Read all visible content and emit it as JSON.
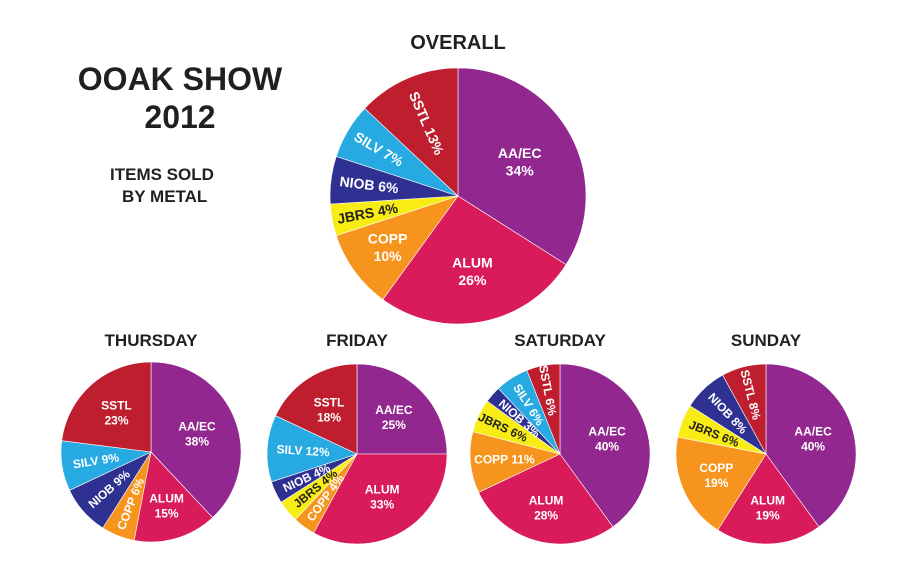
{
  "header": {
    "title_line1": "OOAK SHOW",
    "title_line2": "2012",
    "subtitle_line1": "ITEMS SOLD",
    "subtitle_line2": "BY METAL"
  },
  "colors": {
    "AA/EC": "#92278f",
    "ALUM": "#d91b5c",
    "COPP": "#f7941d",
    "JBRS": "#f7ec13",
    "NIOB": "#2e3192",
    "SILV": "#27aae1",
    "SSTL": "#be1e2d"
  },
  "chart_data": [
    {
      "type": "pie",
      "title": "OVERALL",
      "slices": [
        {
          "label": "AA/EC",
          "value": 34,
          "text": "AA/EC",
          "pct": "34%"
        },
        {
          "label": "ALUM",
          "value": 26,
          "text": "ALUM",
          "pct": "26%"
        },
        {
          "label": "COPP",
          "value": 10,
          "text": "COPP",
          "pct": "10%"
        },
        {
          "label": "JBRS",
          "value": 4,
          "text": "JBRS 4%",
          "pct": ""
        },
        {
          "label": "NIOB",
          "value": 6,
          "text": "NIOB 6%",
          "pct": ""
        },
        {
          "label": "SILV",
          "value": 7,
          "text": "SILV 7%",
          "pct": ""
        },
        {
          "label": "SSTL",
          "value": 13,
          "text": "SSTL 13%",
          "pct": ""
        }
      ]
    },
    {
      "type": "pie",
      "title": "THURSDAY",
      "slices": [
        {
          "label": "AA/EC",
          "value": 38,
          "text": "AA/EC",
          "pct": "38%"
        },
        {
          "label": "ALUM",
          "value": 15,
          "text": "ALUM",
          "pct": "15%"
        },
        {
          "label": "COPP",
          "value": 6,
          "text": "COPP 6%",
          "pct": ""
        },
        {
          "label": "NIOB",
          "value": 9,
          "text": "NIOB 9%",
          "pct": ""
        },
        {
          "label": "SILV",
          "value": 9,
          "text": "SILV 9%",
          "pct": ""
        },
        {
          "label": "SSTL",
          "value": 23,
          "text": "SSTL",
          "pct": "23%"
        }
      ]
    },
    {
      "type": "pie",
      "title": "FRIDAY",
      "slices": [
        {
          "label": "AA/EC",
          "value": 25,
          "text": "AA/EC",
          "pct": "25%"
        },
        {
          "label": "ALUM",
          "value": 33,
          "text": "ALUM",
          "pct": "33%"
        },
        {
          "label": "COPP",
          "value": 4,
          "text": "COPP 4%",
          "pct": ""
        },
        {
          "label": "JBRS",
          "value": 4,
          "text": "JBRS 4%",
          "pct": ""
        },
        {
          "label": "NIOB",
          "value": 4,
          "text": "NIOB 4%",
          "pct": ""
        },
        {
          "label": "SILV",
          "value": 12,
          "text": "SILV 12%",
          "pct": ""
        },
        {
          "label": "SSTL",
          "value": 18,
          "text": "SSTL",
          "pct": "18%"
        }
      ]
    },
    {
      "type": "pie",
      "title": "SATURDAY",
      "slices": [
        {
          "label": "AA/EC",
          "value": 40,
          "text": "AA/EC",
          "pct": "40%"
        },
        {
          "label": "ALUM",
          "value": 28,
          "text": "ALUM",
          "pct": "28%"
        },
        {
          "label": "COPP",
          "value": 11,
          "text": "COPP 11%",
          "pct": ""
        },
        {
          "label": "JBRS",
          "value": 6,
          "text": "JBRS 6%",
          "pct": ""
        },
        {
          "label": "NIOB",
          "value": 3,
          "text": "NIOB 3%",
          "pct": ""
        },
        {
          "label": "SILV",
          "value": 6,
          "text": "SILV 6%",
          "pct": ""
        },
        {
          "label": "SSTL",
          "value": 6,
          "text": "SSTL 6%",
          "pct": ""
        }
      ]
    },
    {
      "type": "pie",
      "title": "SUNDAY",
      "slices": [
        {
          "label": "AA/EC",
          "value": 40,
          "text": "AA/EC",
          "pct": "40%"
        },
        {
          "label": "ALUM",
          "value": 19,
          "text": "ALUM",
          "pct": "19%"
        },
        {
          "label": "COPP",
          "value": 19,
          "text": "COPP",
          "pct": "19%"
        },
        {
          "label": "JBRS",
          "value": 6,
          "text": "JBRS 6%",
          "pct": ""
        },
        {
          "label": "NIOB",
          "value": 8,
          "text": "NIOB 8%",
          "pct": ""
        },
        {
          "label": "SSTL",
          "value": 8,
          "text": "SSTL 8%",
          "pct": ""
        }
      ]
    }
  ]
}
